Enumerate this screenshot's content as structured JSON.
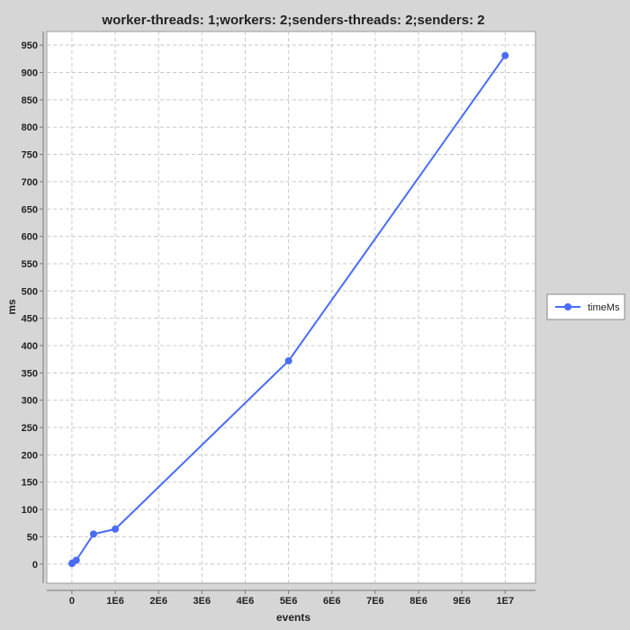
{
  "chart_data": {
    "type": "line",
    "title": "worker-threads: 1;workers: 2;senders-threads: 2;senders: 2",
    "xlabel": "events",
    "ylabel": "ms",
    "xlim": [
      -580000,
      10700000
    ],
    "ylim": [
      -35,
      975
    ],
    "x_ticks": [
      0,
      1000000,
      2000000,
      3000000,
      4000000,
      5000000,
      6000000,
      7000000,
      8000000,
      9000000,
      10000000
    ],
    "x_tick_labels": [
      "0",
      "1E6",
      "2E6",
      "3E6",
      "4E6",
      "5E6",
      "6E6",
      "7E6",
      "8E6",
      "9E6",
      "1E7"
    ],
    "y_ticks": [
      0,
      50,
      100,
      150,
      200,
      250,
      300,
      350,
      400,
      450,
      500,
      550,
      600,
      650,
      700,
      750,
      800,
      850,
      900,
      950
    ],
    "grid": true,
    "legend_position": "right",
    "series": [
      {
        "name": "timeMs",
        "color": "#4a6cf7",
        "x": [
          1000,
          10000,
          100000,
          500000,
          1000000,
          5000000,
          10000000
        ],
        "y": [
          1,
          2,
          7,
          55,
          64,
          372,
          931
        ]
      }
    ]
  }
}
